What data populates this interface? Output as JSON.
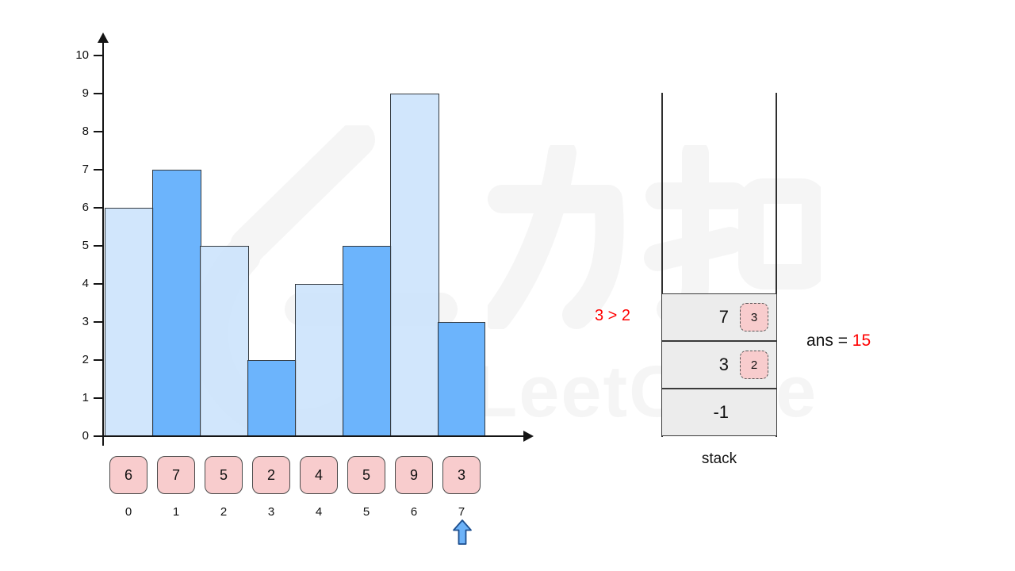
{
  "chart_data": {
    "type": "bar",
    "categories": [
      "0",
      "1",
      "2",
      "3",
      "4",
      "5",
      "6",
      "7"
    ],
    "values": [
      6,
      7,
      5,
      2,
      4,
      5,
      9,
      3
    ],
    "title": "",
    "xlabel": "",
    "ylabel": "",
    "ylim": [
      0,
      10
    ],
    "yticks": [
      0,
      1,
      2,
      3,
      4,
      5,
      6,
      7,
      8,
      9,
      10
    ],
    "grid": false,
    "bar_color_pattern": "alternating light/dark blue starting light at index 0"
  },
  "heights_row": {
    "values": [
      "6",
      "7",
      "5",
      "2",
      "4",
      "5",
      "9",
      "3"
    ]
  },
  "index_row": {
    "labels": [
      "0",
      "1",
      "2",
      "3",
      "4",
      "5",
      "6",
      "7"
    ],
    "pointer_at_index": "7"
  },
  "stack": {
    "label": "stack",
    "cells": [
      {
        "value": "7",
        "tag": "3"
      },
      {
        "value": "3",
        "tag": "2"
      },
      {
        "value": "-1",
        "tag": null
      }
    ]
  },
  "annotations": {
    "comparison": "3 > 2",
    "ans_label": "ans = ",
    "ans_value": "15"
  },
  "watermark": {
    "cn": "力扣",
    "en": "LeetCode"
  },
  "colors": {
    "bar_light": "rgba(203,226,252,0.88)",
    "bar_dark": "rgba(96,174,252,0.92)",
    "bar_border": "#343a40",
    "pink_fill": "#f8cccd",
    "pink_border": "#4a4a4a",
    "cell_gray": "#ececec",
    "red": "#ff0000",
    "watermark_gray": "#f5f5f5",
    "pointer_blue": "#6cb2f8",
    "pointer_border": "#1d4f8f"
  }
}
